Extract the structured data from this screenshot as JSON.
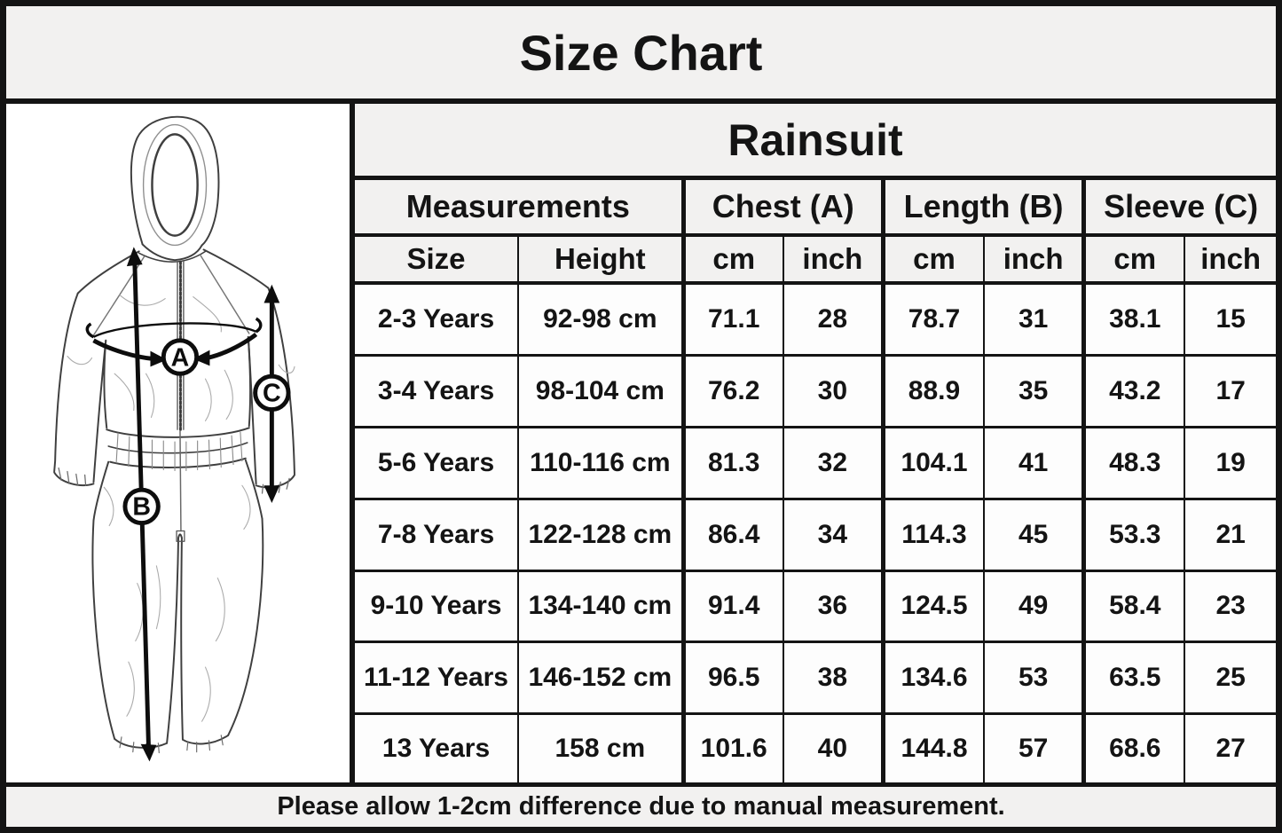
{
  "title": "Size Chart",
  "product_header": "Rainsuit",
  "size_table": {
    "group_headers": [
      "Measurements",
      "Chest (A)",
      "Length (B)",
      "Sleeve (C)"
    ],
    "sub_headers": [
      "Size",
      "Height",
      "cm",
      "inch",
      "cm",
      "inch",
      "cm",
      "inch"
    ],
    "rows": [
      [
        "2-3 Years",
        "92-98 cm",
        "71.1",
        "28",
        "78.7",
        "31",
        "38.1",
        "15"
      ],
      [
        "3-4 Years",
        "98-104 cm",
        "76.2",
        "30",
        "88.9",
        "35",
        "43.2",
        "17"
      ],
      [
        "5-6 Years",
        "110-116 cm",
        "81.3",
        "32",
        "104.1",
        "41",
        "48.3",
        "19"
      ],
      [
        "7-8 Years",
        "122-128 cm",
        "86.4",
        "34",
        "114.3",
        "45",
        "53.3",
        "21"
      ],
      [
        "9-10 Years",
        "134-140 cm",
        "91.4",
        "36",
        "124.5",
        "49",
        "58.4",
        "23"
      ],
      [
        "11-12 Years",
        "146-152 cm",
        "96.5",
        "38",
        "134.6",
        "53",
        "63.5",
        "25"
      ],
      [
        "13 Years",
        "158 cm",
        "101.6",
        "40",
        "144.8",
        "57",
        "68.6",
        "27"
      ]
    ]
  },
  "diagram": {
    "label_a": "A",
    "label_b": "B",
    "label_c": "C"
  },
  "footer_note": "Please allow 1-2cm difference due to manual measurement.",
  "colors": {
    "band_bg": "#f2f1f0",
    "cell_bg": "#fdfdfd",
    "line": "#141414",
    "text": "#141414"
  }
}
